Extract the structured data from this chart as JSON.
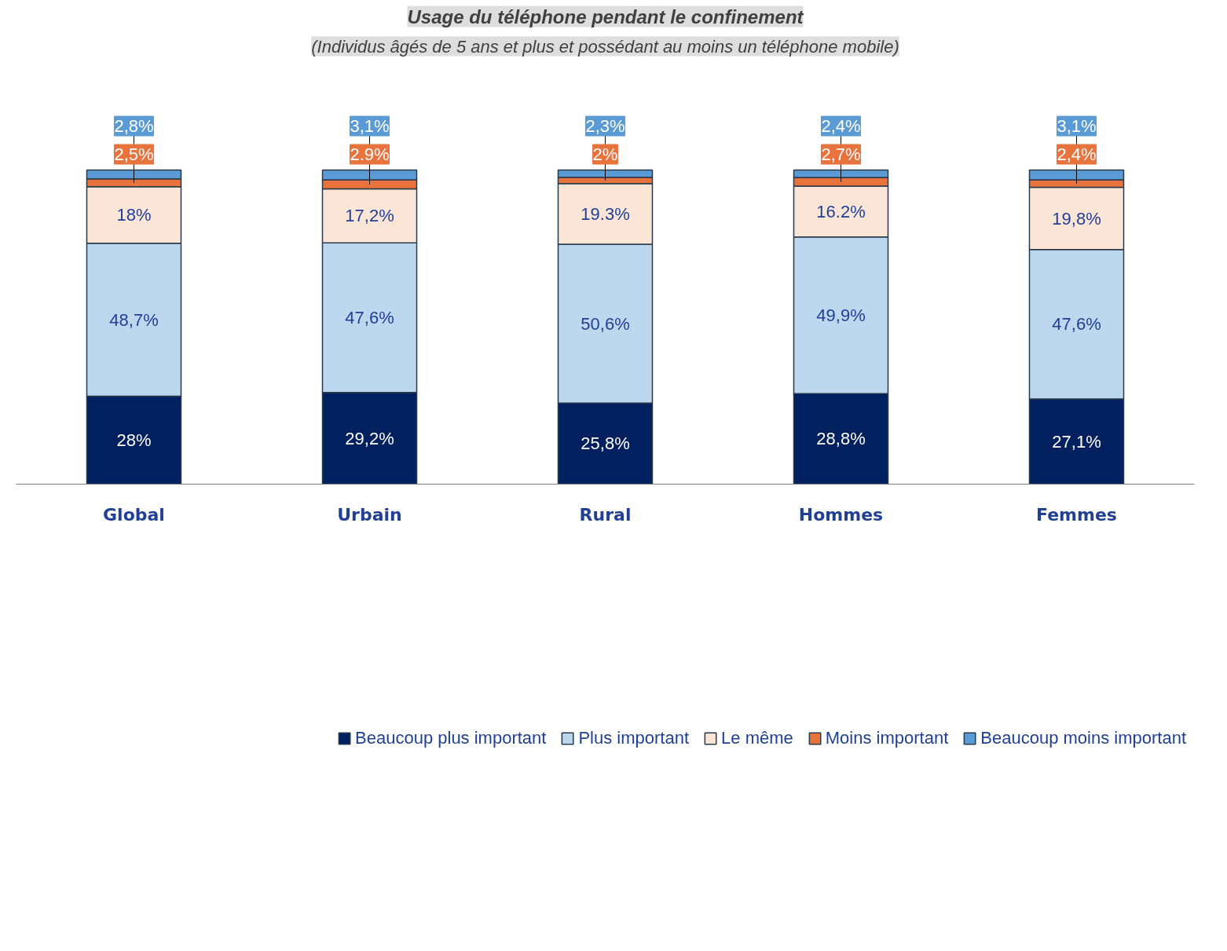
{
  "chart_data": {
    "type": "bar",
    "stacked": true,
    "title": "Usage du téléphone pendant le confinement",
    "subtitle": "(Individus âgés de 5 ans et plus et possédant au moins un téléphone mobile)",
    "categories": [
      "Global",
      "Urbain",
      "Rural",
      "Hommes",
      "Femmes"
    ],
    "series": [
      {
        "name": "Beaucoup plus important",
        "color": "#002060",
        "values": [
          28,
          29.2,
          25.8,
          28.8,
          27.1
        ],
        "value_labels": [
          "28%",
          "29,2%",
          "25,8%",
          "28,8%",
          "27,1%"
        ]
      },
      {
        "name": "Plus important",
        "color": "#bdd7ee",
        "values": [
          48.7,
          47.6,
          50.6,
          49.9,
          47.6
        ],
        "value_labels": [
          "48,7%",
          "47,6%",
          "50,6%",
          "49,9%",
          "47,6%"
        ]
      },
      {
        "name": "Le même",
        "color": "#fbe5d6",
        "values": [
          18,
          17.2,
          19.3,
          16.2,
          19.8
        ],
        "value_labels": [
          "18%",
          "17,2%",
          "19.3%",
          "16.2%",
          "19,8%"
        ]
      },
      {
        "name": "Moins important",
        "color": "#e8733d",
        "values": [
          2.5,
          2.9,
          2,
          2.7,
          2.4
        ],
        "value_labels": [
          "2,5%",
          "2.9%",
          "2%",
          "2,7%",
          "2,4%"
        ]
      },
      {
        "name": "Beaucoup moins important",
        "color": "#5b9bd5",
        "values": [
          2.8,
          3.1,
          2.3,
          2.4,
          3.1
        ],
        "value_labels": [
          "2,8%",
          "3,1%",
          "2,3%",
          "2,4%",
          "3,1%"
        ]
      }
    ],
    "legend": "bottom",
    "grid": false
  }
}
